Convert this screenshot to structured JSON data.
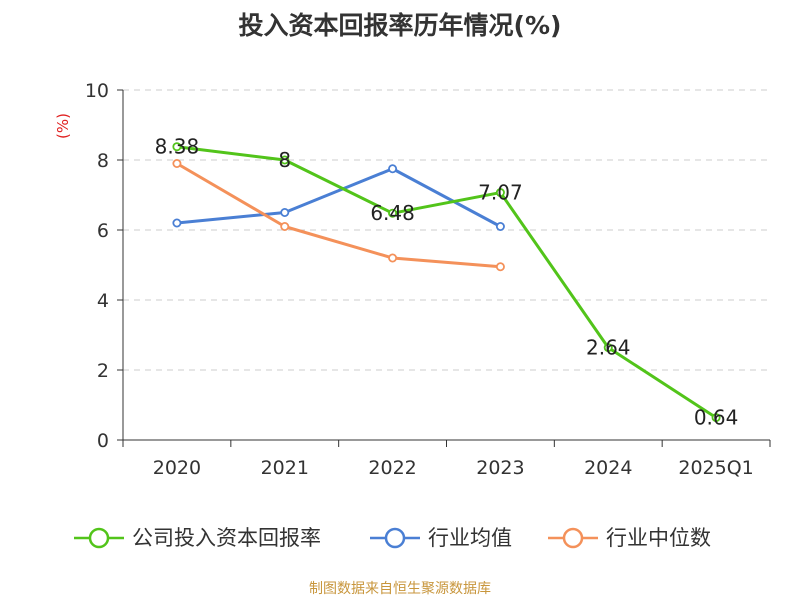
{
  "chart_data": {
    "type": "line",
    "title": "投入资本回报率历年情况(%)",
    "ylabel": "(%)",
    "xlabel": "",
    "ylim": [
      0,
      10
    ],
    "yticks": [
      0,
      2,
      4,
      6,
      8,
      10
    ],
    "categories": [
      "2020",
      "2021",
      "2022",
      "2023",
      "2024",
      "2025Q1"
    ],
    "grid": true,
    "legend_position": "bottom",
    "series": [
      {
        "name": "公司投入资本回报率",
        "color": "#52c41a",
        "show_labels": true,
        "labels": [
          "8.38",
          "8",
          "6.48",
          "7.07",
          "2.64",
          "0.64"
        ],
        "values": [
          8.38,
          8,
          6.48,
          7.07,
          2.64,
          0.64
        ]
      },
      {
        "name": "行业均值",
        "color": "#4a7fd4",
        "show_labels": false,
        "values": [
          6.2,
          6.5,
          7.75,
          6.1,
          null,
          null
        ]
      },
      {
        "name": "行业中位数",
        "color": "#f4915a",
        "show_labels": false,
        "values": [
          7.9,
          6.1,
          5.2,
          4.95,
          null,
          null
        ]
      }
    ]
  },
  "footer": {
    "text": "制图数据来自恒生聚源数据库",
    "color": "#c8963c"
  },
  "colors": {
    "ylabel": "#e02020",
    "axis": "#333333",
    "grid": "#cccccc"
  }
}
